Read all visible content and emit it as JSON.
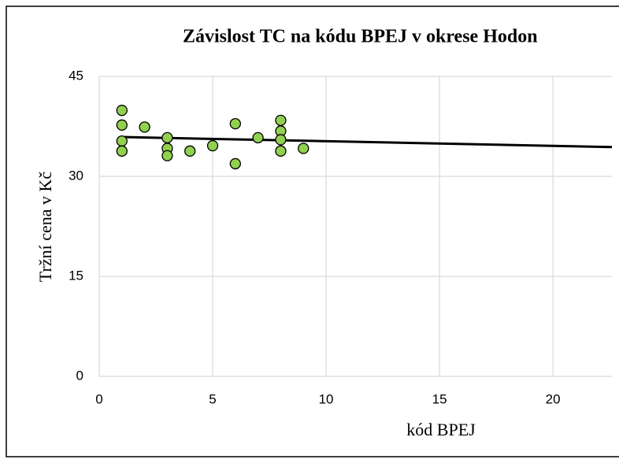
{
  "chart_data": {
    "type": "scatter",
    "title": "Závislost TC na kódu BPEJ v okrese Hodon",
    "x_label": "kód BPEJ",
    "y_label": "Tržní cena v Kč",
    "series": [
      {
        "color": "#92d050",
        "x": [
          1,
          1,
          1,
          1,
          2,
          3,
          3,
          3,
          4,
          5,
          6,
          6,
          7,
          8,
          8,
          8,
          8,
          9
        ],
        "values": [
          39.9,
          37.7,
          35.3,
          33.8,
          37.4,
          35.8,
          34.2,
          33.1,
          33.8,
          34.6,
          37.9,
          31.9,
          35.8,
          38.4,
          36.8,
          35.5,
          33.8,
          34.2
        ]
      }
    ],
    "trendline": {
      "color": "#000000",
      "x": [
        1,
        22.6
      ],
      "values": [
        35.9,
        34.4
      ]
    },
    "xlim": [
      0,
      22.6
    ],
    "xticks": [
      0,
      5,
      10,
      15,
      20
    ],
    "ylim": [
      0,
      45
    ],
    "yticks": [
      0,
      15,
      30,
      45
    ],
    "grid": true
  }
}
